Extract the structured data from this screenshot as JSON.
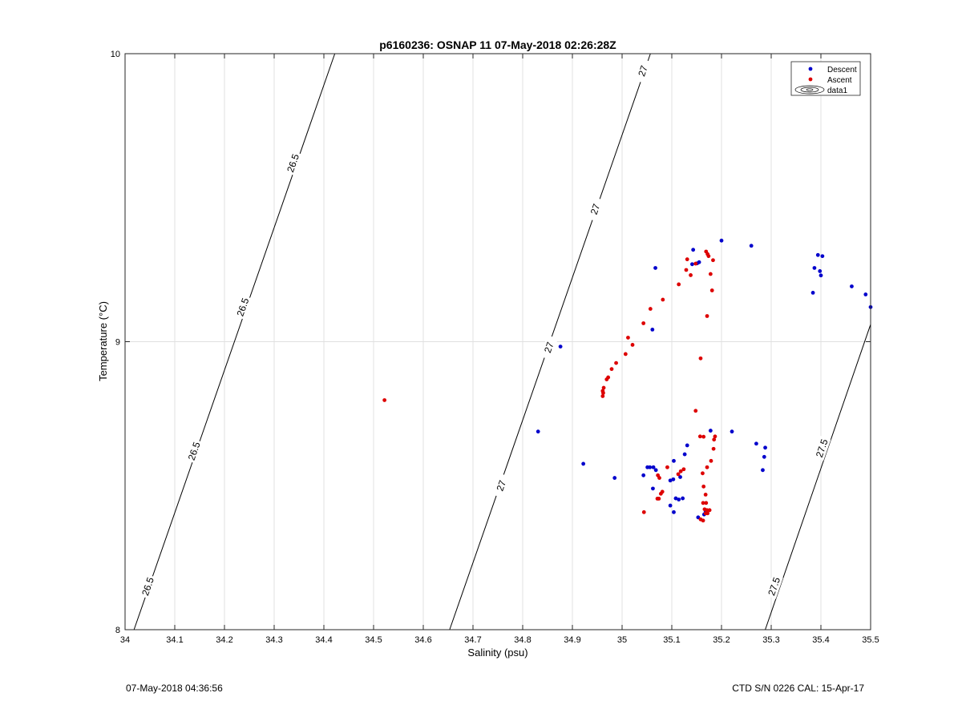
{
  "chart_data": {
    "type": "scatter",
    "title": "p6160236: OSNAP 11 07-May-2018 02:26:28Z",
    "xlabel": "Salinity (psu)",
    "ylabel": "Temperature (°C)",
    "xlim": [
      34,
      35.5
    ],
    "ylim": [
      8,
      10
    ],
    "xticks": [
      "34",
      "34.1",
      "34.2",
      "34.3",
      "34.4",
      "34.5",
      "34.6",
      "34.7",
      "34.8",
      "34.9",
      "35",
      "35.1",
      "35.2",
      "35.3",
      "35.4",
      "35.5"
    ],
    "yticks": [
      "8",
      "9",
      "10"
    ],
    "grid": true,
    "legend_position": "top-right",
    "legend": [
      "Descent",
      "Ascent",
      "data1"
    ],
    "colors": {
      "descent": "#0000cc",
      "ascent": "#dd0000",
      "contour": "#000000",
      "grid": "#e0e0e0"
    },
    "contours": [
      {
        "level": "26.5",
        "x": [
          34.018,
          34.422
        ],
        "y": [
          8.0,
          10.0
        ],
        "labels": [
          [
            34.046,
            8.15
          ],
          [
            34.139,
            8.62
          ],
          [
            34.237,
            9.12
          ],
          [
            34.338,
            9.62
          ]
        ]
      },
      {
        "level": "27",
        "x": [
          34.653,
          35.057
        ],
        "y": [
          8.0,
          10.0
        ],
        "labels": [
          [
            34.757,
            8.5
          ],
          [
            34.853,
            8.98
          ],
          [
            34.946,
            9.46
          ],
          [
            35.042,
            9.94
          ]
        ]
      },
      {
        "level": "27.5",
        "x": [
          35.288,
          35.5
        ],
        "y": [
          8.0,
          9.06
        ],
        "labels": [
          [
            35.306,
            8.15
          ],
          [
            35.402,
            8.63
          ]
        ]
      }
    ],
    "series": [
      {
        "name": "Descent",
        "points": [
          [
            34.876,
            8.983
          ],
          [
            34.831,
            8.688
          ],
          [
            34.922,
            8.576
          ],
          [
            34.985,
            8.527
          ],
          [
            35.043,
            8.536
          ],
          [
            35.051,
            8.564
          ],
          [
            35.056,
            8.564
          ],
          [
            35.063,
            8.564
          ],
          [
            35.068,
            8.554
          ],
          [
            35.062,
            8.49
          ],
          [
            35.097,
            8.431
          ],
          [
            35.104,
            8.408
          ],
          [
            35.108,
            8.456
          ],
          [
            35.114,
            8.452
          ],
          [
            35.122,
            8.456
          ],
          [
            35.097,
            8.518
          ],
          [
            35.103,
            8.522
          ],
          [
            35.104,
            8.586
          ],
          [
            35.117,
            8.53
          ],
          [
            35.126,
            8.609
          ],
          [
            35.131,
            8.64
          ],
          [
            35.153,
            8.39
          ],
          [
            35.165,
            8.4
          ],
          [
            35.168,
            8.408
          ],
          [
            35.178,
            8.691
          ],
          [
            35.221,
            8.688
          ],
          [
            35.27,
            8.646
          ],
          [
            35.288,
            8.632
          ],
          [
            35.286,
            8.6
          ],
          [
            35.283,
            8.554
          ],
          [
            35.061,
            9.042
          ],
          [
            35.067,
            9.256
          ],
          [
            35.143,
            9.319
          ],
          [
            35.141,
            9.269
          ],
          [
            35.151,
            9.272
          ],
          [
            35.155,
            9.276
          ],
          [
            35.2,
            9.351
          ],
          [
            35.26,
            9.333
          ],
          [
            35.394,
            9.301
          ],
          [
            35.403,
            9.297
          ],
          [
            35.387,
            9.256
          ],
          [
            35.398,
            9.245
          ],
          [
            35.4,
            9.23
          ],
          [
            35.384,
            9.17
          ],
          [
            35.462,
            9.192
          ],
          [
            35.49,
            9.164
          ],
          [
            35.5,
            9.12
          ]
        ]
      },
      {
        "name": "Ascent",
        "points": [
          [
            34.522,
            8.797
          ],
          [
            34.961,
            8.811
          ],
          [
            34.962,
            8.822
          ],
          [
            34.961,
            8.829
          ],
          [
            34.963,
            8.84
          ],
          [
            34.969,
            8.869
          ],
          [
            34.972,
            8.876
          ],
          [
            34.979,
            8.905
          ],
          [
            34.988,
            8.926
          ],
          [
            35.007,
            8.957
          ],
          [
            35.021,
            8.989
          ],
          [
            35.012,
            9.014
          ],
          [
            35.043,
            9.064
          ],
          [
            35.057,
            9.114
          ],
          [
            35.082,
            9.146
          ],
          [
            35.114,
            9.199
          ],
          [
            35.138,
            9.231
          ],
          [
            35.129,
            9.249
          ],
          [
            35.131,
            9.286
          ],
          [
            35.148,
            9.271
          ],
          [
            35.158,
            8.942
          ],
          [
            35.148,
            8.76
          ],
          [
            35.171,
            9.089
          ],
          [
            35.181,
            9.178
          ],
          [
            35.178,
            9.235
          ],
          [
            35.183,
            9.283
          ],
          [
            35.172,
            9.304
          ],
          [
            35.174,
            9.297
          ],
          [
            35.169,
            9.313
          ],
          [
            35.164,
            8.67
          ],
          [
            35.185,
            8.66
          ],
          [
            35.187,
            8.671
          ],
          [
            35.184,
            8.628
          ],
          [
            35.179,
            8.586
          ],
          [
            35.171,
            8.564
          ],
          [
            35.162,
            8.543
          ],
          [
            35.164,
            8.497
          ],
          [
            35.168,
            8.469
          ],
          [
            35.163,
            8.44
          ],
          [
            35.169,
            8.44
          ],
          [
            35.166,
            8.418
          ],
          [
            35.171,
            8.415
          ],
          [
            35.176,
            8.415
          ],
          [
            35.168,
            8.404
          ],
          [
            35.172,
            8.404
          ],
          [
            35.158,
            8.383
          ],
          [
            35.163,
            8.379
          ],
          [
            35.044,
            8.408
          ],
          [
            35.071,
            8.455
          ],
          [
            35.074,
            8.455
          ],
          [
            35.078,
            8.472
          ],
          [
            35.081,
            8.479
          ],
          [
            35.072,
            8.536
          ],
          [
            35.075,
            8.527
          ],
          [
            35.091,
            8.564
          ],
          [
            35.113,
            8.54
          ],
          [
            35.118,
            8.55
          ],
          [
            35.124,
            8.557
          ],
          [
            35.157,
            8.671
          ]
        ]
      }
    ]
  },
  "footer": {
    "left": "07-May-2018 04:36:56",
    "right": "CTD S/N 0226  CAL: 15-Apr-17"
  }
}
